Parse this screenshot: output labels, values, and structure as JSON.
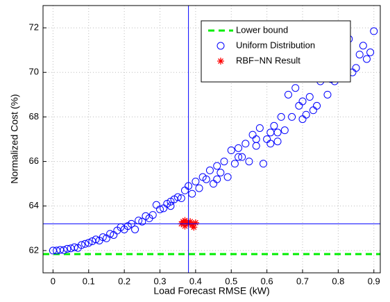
{
  "chart_data": {
    "type": "scatter",
    "xlabel": "Load Forecast RMSE (kW)",
    "ylabel": "Normalized Cost (%)",
    "xlim": [
      -0.028,
      0.918
    ],
    "ylim": [
      61,
      73
    ],
    "xticks": [
      0,
      0.1,
      0.2,
      0.3,
      0.4,
      0.5,
      0.6,
      0.7,
      0.8,
      0.9
    ],
    "yticks": [
      62,
      64,
      66,
      68,
      70,
      72
    ],
    "grid": true,
    "legend": "upper right",
    "crosshair": {
      "x": 0.38,
      "y": 63.2,
      "color": "#0000ff"
    },
    "series": [
      {
        "name": "Lower bound",
        "kind": "hline",
        "color": "#00ee00",
        "value": 61.84
      },
      {
        "name": "Uniform Distribution",
        "kind": "circle",
        "color": "#0000ff",
        "x": [
          0,
          0.01,
          0.02,
          0.03,
          0.04,
          0.05,
          0.06,
          0.07,
          0.08,
          0.09,
          0.1,
          0.11,
          0.12,
          0.13,
          0.14,
          0.15,
          0.16,
          0.17,
          0.18,
          0.19,
          0.2,
          0.21,
          0.22,
          0.23,
          0.24,
          0.25,
          0.26,
          0.27,
          0.28,
          0.29,
          0.3,
          0.31,
          0.32,
          0.33,
          0.34,
          0.35,
          0.36,
          0.37,
          0.38,
          0.39,
          0.4,
          0.41,
          0.42,
          0.43,
          0.44,
          0.45,
          0.46,
          0.47,
          0.48,
          0.49,
          0.5,
          0.51,
          0.52,
          0.53,
          0.54,
          0.55,
          0.56,
          0.57,
          0.58,
          0.59,
          0.6,
          0.61,
          0.62,
          0.63,
          0.64,
          0.65,
          0.66,
          0.67,
          0.68,
          0.69,
          0.7,
          0.71,
          0.72,
          0.73,
          0.74,
          0.75,
          0.76,
          0.77,
          0.78,
          0.79,
          0.8,
          0.81,
          0.82,
          0.83,
          0.84,
          0.85,
          0.86,
          0.87,
          0.88,
          0.89,
          0.9,
          0.33,
          0.46,
          0.52,
          0.57,
          0.61,
          0.63,
          0.7
        ],
        "values": [
          62.0,
          62.0,
          62.03,
          62.02,
          62.08,
          62.1,
          62.15,
          62.12,
          62.25,
          62.3,
          62.35,
          62.42,
          62.5,
          62.45,
          62.6,
          62.55,
          62.75,
          62.7,
          62.9,
          63.05,
          62.95,
          63.1,
          63.2,
          62.95,
          63.35,
          63.3,
          63.55,
          63.45,
          63.6,
          64.05,
          63.85,
          63.9,
          64.1,
          64.0,
          64.3,
          64.4,
          64.35,
          64.7,
          64.9,
          64.55,
          65.1,
          64.8,
          65.3,
          65.2,
          65.6,
          65.0,
          65.8,
          65.5,
          66.0,
          65.3,
          66.5,
          65.9,
          66.6,
          66.2,
          66.8,
          66.0,
          67.2,
          66.7,
          67.5,
          65.9,
          67.0,
          66.8,
          67.6,
          67.3,
          68.0,
          67.4,
          69.0,
          68.0,
          69.3,
          68.5,
          68.7,
          68.1,
          68.9,
          68.3,
          68.5,
          69.6,
          69.8,
          69.0,
          69.7,
          69.6,
          70.8,
          70.6,
          71.0,
          71.5,
          70.0,
          70.2,
          70.8,
          71.2,
          70.6,
          70.9,
          71.85,
          64.2,
          65.2,
          66.2,
          67.0,
          67.3,
          66.9,
          67.9
        ]
      },
      {
        "name": "RBF−NN Result",
        "kind": "asterisk",
        "color": "#ff0000",
        "x": [
          0.36,
          0.365,
          0.37,
          0.375,
          0.38,
          0.385,
          0.39,
          0.395,
          0.4,
          0.37
        ],
        "values": [
          63.2,
          63.3,
          63.1,
          63.25,
          63.2,
          63.3,
          63.15,
          63.05,
          63.25,
          63.35
        ]
      }
    ]
  }
}
